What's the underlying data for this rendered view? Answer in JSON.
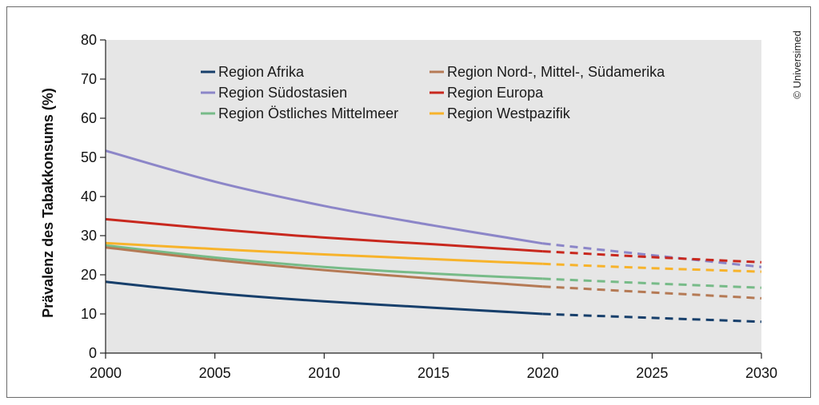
{
  "credit": "© Universimed",
  "chart_data": {
    "type": "line",
    "ylabel": "Prävalenz des Tabakkonsums (%)",
    "xlabel": "",
    "xlim": [
      2000,
      2030
    ],
    "ylim": [
      0,
      80
    ],
    "x_ticks": [
      "2000",
      "2005",
      "2010",
      "2015",
      "2020",
      "2025",
      "2030"
    ],
    "y_ticks": [
      "0",
      "10",
      "20",
      "30",
      "40",
      "50",
      "60",
      "70",
      "80"
    ],
    "grid": false,
    "background": "#e6e6e6",
    "legend_placement": "top",
    "projection_start": 2020,
    "series": [
      {
        "name": "Region Afrika",
        "color": "#173f6b",
        "x": [
          2000,
          2005,
          2010,
          2015,
          2020,
          2025,
          2030
        ],
        "values": [
          18.2,
          15.3,
          13.2,
          11.6,
          10.0,
          9.0,
          8.0
        ]
      },
      {
        "name": "Region Südostasien",
        "color": "#8c86c8",
        "x": [
          2000,
          2005,
          2010,
          2015,
          2020,
          2025,
          2030
        ],
        "values": [
          51.7,
          43.8,
          37.6,
          32.6,
          28.0,
          25.0,
          22.0
        ]
      },
      {
        "name": "Region Östliches Mittelmeer",
        "color": "#77bb88",
        "x": [
          2000,
          2005,
          2010,
          2015,
          2020,
          2025,
          2030
        ],
        "values": [
          27.5,
          24.4,
          22.0,
          20.3,
          19.0,
          17.8,
          16.7
        ]
      },
      {
        "name": "Region Nord-, Mittel-, Südamerika",
        "color": "#b57a55",
        "x": [
          2000,
          2005,
          2010,
          2015,
          2020,
          2025,
          2030
        ],
        "values": [
          27.0,
          23.8,
          21.2,
          19.0,
          17.0,
          15.5,
          14.0
        ]
      },
      {
        "name": "Region Europa",
        "color": "#c8281e",
        "x": [
          2000,
          2005,
          2010,
          2015,
          2020,
          2025,
          2030
        ],
        "values": [
          34.2,
          31.7,
          29.5,
          27.8,
          26.0,
          24.5,
          23.2
        ]
      },
      {
        "name": "Region Westpazifik",
        "color": "#f7b32b",
        "x": [
          2000,
          2005,
          2010,
          2015,
          2020,
          2025,
          2030
        ],
        "values": [
          28.1,
          26.6,
          25.2,
          24.0,
          22.8,
          21.7,
          20.8
        ]
      }
    ]
  }
}
